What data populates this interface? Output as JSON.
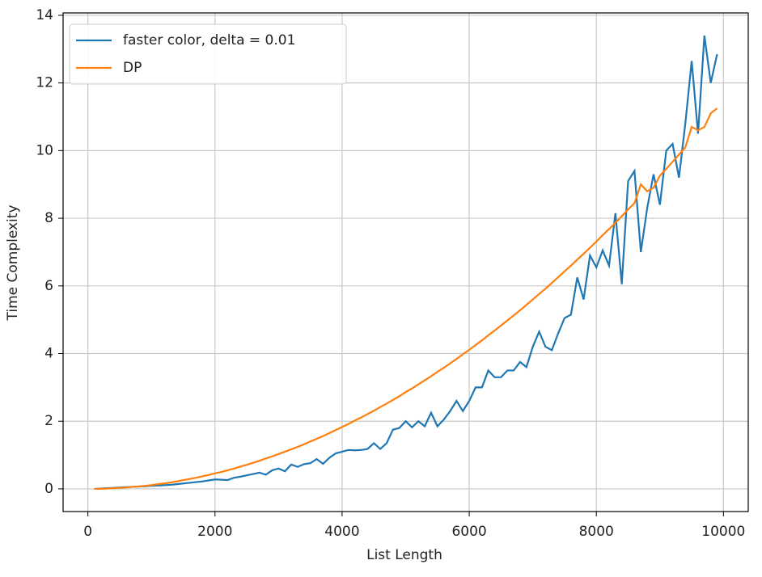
{
  "chart_data": {
    "type": "line",
    "xlabel": "List Length",
    "ylabel": "Time Complexity",
    "x": [
      100,
      200,
      300,
      400,
      500,
      600,
      700,
      800,
      900,
      1000,
      1100,
      1200,
      1300,
      1400,
      1500,
      1600,
      1700,
      1800,
      1900,
      2000,
      2100,
      2200,
      2300,
      2400,
      2500,
      2600,
      2700,
      2800,
      2900,
      3000,
      3100,
      3200,
      3300,
      3400,
      3500,
      3600,
      3700,
      3800,
      3900,
      4000,
      4100,
      4200,
      4300,
      4400,
      4500,
      4600,
      4700,
      4800,
      4900,
      5000,
      5100,
      5200,
      5300,
      5400,
      5500,
      5600,
      5700,
      5800,
      5900,
      6000,
      6100,
      6200,
      6300,
      6400,
      6500,
      6600,
      6700,
      6800,
      6900,
      7000,
      7100,
      7200,
      7300,
      7400,
      7500,
      7600,
      7700,
      7800,
      7900,
      8000,
      8100,
      8200,
      8300,
      8400,
      8500,
      8600,
      8700,
      8800,
      8900,
      9000,
      9100,
      9200,
      9300,
      9400,
      9500,
      9600,
      9700,
      9800,
      9900
    ],
    "series": [
      {
        "name": "faster color, delta = 0.01",
        "color": "#1f77b4",
        "values": [
          0.0,
          0.01,
          0.02,
          0.03,
          0.04,
          0.05,
          0.06,
          0.07,
          0.08,
          0.09,
          0.1,
          0.11,
          0.12,
          0.14,
          0.16,
          0.18,
          0.2,
          0.22,
          0.25,
          0.28,
          0.27,
          0.26,
          0.33,
          0.36,
          0.4,
          0.44,
          0.48,
          0.42,
          0.55,
          0.6,
          0.52,
          0.72,
          0.65,
          0.73,
          0.76,
          0.88,
          0.74,
          0.92,
          1.05,
          1.1,
          1.15,
          1.14,
          1.15,
          1.18,
          1.35,
          1.18,
          1.35,
          1.75,
          1.8,
          2.0,
          1.82,
          2.0,
          1.85,
          2.25,
          1.85,
          2.05,
          2.3,
          2.6,
          2.3,
          2.6,
          3.0,
          3.0,
          3.5,
          3.3,
          3.3,
          3.5,
          3.5,
          3.75,
          3.6,
          4.2,
          4.65,
          4.2,
          4.1,
          4.6,
          5.05,
          5.15,
          6.25,
          5.6,
          6.9,
          6.55,
          7.05,
          6.6,
          8.15,
          6.05,
          9.1,
          9.4,
          7.0,
          8.3,
          9.3,
          8.4,
          10.0,
          10.2,
          9.2,
          10.8,
          12.65,
          10.5,
          13.4,
          12.0,
          12.85
        ]
      },
      {
        "name": "DP",
        "color": "#ff7f0e",
        "values": [
          0.0,
          0.0,
          0.01,
          0.02,
          0.03,
          0.04,
          0.06,
          0.07,
          0.09,
          0.11,
          0.14,
          0.16,
          0.19,
          0.22,
          0.26,
          0.29,
          0.33,
          0.37,
          0.41,
          0.46,
          0.5,
          0.55,
          0.6,
          0.66,
          0.71,
          0.77,
          0.83,
          0.9,
          0.96,
          1.03,
          1.1,
          1.17,
          1.24,
          1.32,
          1.4,
          1.48,
          1.56,
          1.65,
          1.74,
          1.83,
          1.92,
          2.02,
          2.11,
          2.21,
          2.31,
          2.42,
          2.52,
          2.63,
          2.74,
          2.86,
          2.97,
          3.09,
          3.21,
          3.33,
          3.46,
          3.58,
          3.71,
          3.84,
          3.98,
          4.11,
          4.25,
          4.39,
          4.54,
          4.68,
          4.83,
          4.98,
          5.13,
          5.28,
          5.44,
          5.6,
          5.76,
          5.92,
          6.09,
          6.26,
          6.43,
          6.6,
          6.78,
          6.95,
          7.13,
          7.31,
          7.5,
          7.68,
          7.87,
          8.06,
          8.26,
          8.45,
          9.0,
          8.8,
          8.9,
          9.26,
          9.46,
          9.67,
          9.88,
          10.1,
          10.7,
          10.6,
          10.7,
          11.1,
          11.25
        ]
      }
    ],
    "xlim": [
      -390,
      10390
    ],
    "ylim": [
      -0.67,
      14.07
    ],
    "xticks": [
      0,
      2000,
      4000,
      6000,
      8000,
      10000
    ],
    "yticks": [
      0,
      2,
      4,
      6,
      8,
      10,
      12,
      14
    ],
    "grid": true,
    "legend": "upper left"
  }
}
